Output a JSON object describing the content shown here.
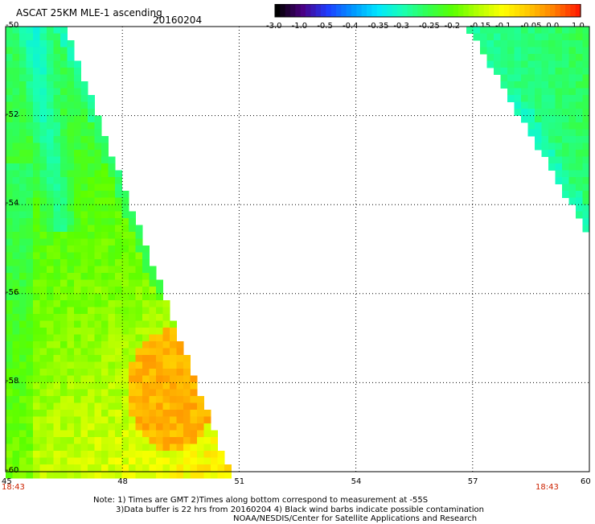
{
  "header": {
    "title": "ASCAT 25KM MLE-1 ascending",
    "date": "20160204"
  },
  "colorbar": {
    "tick_labels": [
      "-3.0",
      "-1.0",
      "-0.5",
      "-0.4",
      "-0.35",
      "-0.3",
      "-0.25",
      "-0.2",
      "-0.15",
      "-0.1",
      "-0.05",
      "0.0",
      "1.0"
    ],
    "colors": [
      "#000000",
      "#4b0082",
      "#1e3cff",
      "#0096ff",
      "#00e6ff",
      "#19ffb4",
      "#32ff50",
      "#5aff00",
      "#b4ff00",
      "#ffff00",
      "#ffc800",
      "#ff8200",
      "#ff1e00"
    ]
  },
  "map": {
    "lat_labels": [
      "-50",
      "-52",
      "-54",
      "-56",
      "-58",
      "-60"
    ],
    "lon_labels": [
      "45",
      "48",
      "51",
      "54",
      "57",
      "60"
    ],
    "lat_range": [
      -60,
      -50
    ],
    "lon_range": [
      45,
      60
    ],
    "time_left": "18:43",
    "time_right": "18:43",
    "swaths": [
      {
        "name": "west-swath",
        "dominant_values": "-0.2 to 0.0",
        "max_region": "around 48.5-50E, 57-60S (orange, ~0.0)"
      },
      {
        "name": "east-swath",
        "dominant_values": "-0.3 to -0.2"
      }
    ]
  },
  "notes": {
    "line1": "Note: 1) Times are GMT 2)Times along bottom correspond to measurement at -55S",
    "line2": "3)Data buffer is 22 hrs from 20160204 4) Black wind barbs indicate possible contamination",
    "line3": "NOAA/NESDIS/Center for Satellite Applications and Research"
  }
}
